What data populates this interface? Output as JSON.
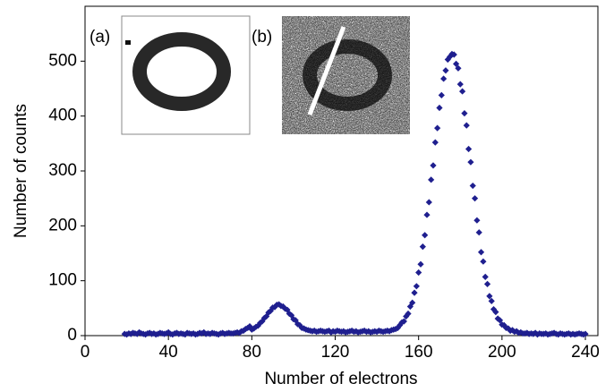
{
  "chart_data": {
    "type": "scatter",
    "xlabel": "Number of electrons",
    "ylabel": "Number of counts",
    "annotations": [
      "(a)",
      "(b)"
    ],
    "xlim": [
      0,
      246
    ],
    "ylim": [
      0,
      600
    ],
    "xticks": [
      0,
      40,
      80,
      120,
      160,
      200,
      240
    ],
    "yticks": [
      0,
      100,
      200,
      300,
      400,
      500
    ],
    "marker": "diamond",
    "series": [
      {
        "color": "#1f1f8f",
        "x": [
          19,
          20,
          21,
          22,
          23,
          24,
          25,
          26,
          27,
          28,
          29,
          30,
          31,
          32,
          33,
          34,
          35,
          36,
          37,
          38,
          39,
          40,
          41,
          42,
          43,
          44,
          45,
          46,
          47,
          48,
          49,
          50,
          51,
          52,
          53,
          54,
          55,
          56,
          57,
          58,
          59,
          60,
          61,
          62,
          63,
          64,
          65,
          66,
          67,
          68,
          69,
          70,
          71,
          72,
          73,
          74,
          75,
          76,
          77,
          78,
          79,
          80,
          81,
          82,
          83,
          84,
          85,
          86,
          87,
          88,
          89,
          90,
          91,
          92,
          93,
          94,
          95,
          96,
          97,
          98,
          99,
          100,
          101,
          102,
          103,
          104,
          105,
          106,
          107,
          108,
          109,
          110,
          111,
          112,
          113,
          114,
          115,
          116,
          117,
          118,
          119,
          120,
          121,
          122,
          123,
          124,
          125,
          126,
          127,
          128,
          129,
          130,
          131,
          132,
          133,
          134,
          135,
          136,
          137,
          138,
          139,
          140,
          141,
          142,
          143,
          144,
          145,
          146,
          147,
          148,
          149,
          150,
          151,
          152,
          153,
          154,
          155,
          156,
          157,
          158,
          159,
          160,
          161,
          162,
          163,
          164,
          165,
          166,
          167,
          168,
          169,
          170,
          171,
          172,
          173,
          174,
          175,
          176,
          177,
          178,
          179,
          180,
          181,
          182,
          183,
          184,
          185,
          186,
          187,
          188,
          189,
          190,
          191,
          192,
          193,
          194,
          195,
          196,
          197,
          198,
          199,
          200,
          201,
          202,
          203,
          204,
          205,
          206,
          207,
          208,
          209,
          210,
          211,
          212,
          213,
          214,
          215,
          216,
          217,
          218,
          219,
          220,
          221,
          222,
          223,
          224,
          225,
          226,
          227,
          228,
          229,
          230,
          231,
          232,
          233,
          234,
          235,
          236,
          237,
          238,
          239,
          240
        ],
        "values": [
          3,
          2,
          4,
          3,
          5,
          4,
          3,
          6,
          4,
          3,
          2,
          4,
          5,
          3,
          4,
          2,
          3,
          5,
          4,
          3,
          4,
          6,
          3,
          2,
          4,
          5,
          3,
          4,
          3,
          2,
          5,
          4,
          3,
          4,
          2,
          3,
          5,
          4,
          6,
          3,
          4,
          3,
          5,
          4,
          3,
          2,
          4,
          5,
          3,
          4,
          5,
          4,
          4,
          5,
          6,
          5,
          8,
          9,
          12,
          14,
          17,
          11,
          13,
          16,
          18,
          23,
          26,
          32,
          35,
          42,
          45,
          51,
          52,
          56,
          57,
          54,
          53,
          49,
          47,
          40,
          37,
          30,
          28,
          21,
          19,
          14,
          13,
          11,
          10,
          9,
          8,
          9,
          7,
          8,
          9,
          8,
          7,
          8,
          9,
          6,
          8,
          7,
          9,
          8,
          7,
          8,
          6,
          7,
          8,
          9,
          7,
          8,
          6,
          7,
          8,
          9,
          7,
          8,
          6,
          7,
          8,
          7,
          9,
          8,
          7,
          8,
          9,
          8,
          10,
          11,
          12,
          14,
          19,
          24,
          26,
          35,
          40,
          53,
          60,
          78,
          90,
          115,
          130,
          162,
          183,
          220,
          243,
          284,
          310,
          352,
          378,
          415,
          438,
          468,
          483,
          503,
          508,
          513,
          512,
          495,
          487,
          458,
          445,
          405,
          383,
          340,
          316,
          273,
          250,
          210,
          188,
          152,
          135,
          107,
          94,
          72,
          63,
          48,
          43,
          31,
          28,
          20,
          19,
          14,
          13,
          9,
          10,
          7,
          8,
          5,
          6,
          4,
          4,
          5,
          3,
          4,
          3,
          5,
          2,
          4,
          3,
          3,
          4,
          2,
          3,
          4,
          5,
          3,
          2,
          4,
          3,
          2,
          3,
          4,
          2,
          3,
          2,
          3,
          4,
          3,
          2,
          3
        ]
      }
    ]
  }
}
